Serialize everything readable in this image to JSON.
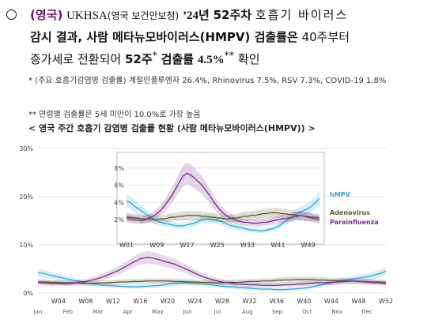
{
  "headline": {
    "tag": "(영국)",
    "source": "UKHSA",
    "source_paren": "(영국 보건안보청)",
    "week_label": "’24년",
    "week_num": "52주차",
    "rest1": "호흡기 바이러스",
    "line2_a": "감시 결과, 사람 메타뉴모바이러스(HMPV) 검출률은",
    "line2_b": "40주부터",
    "line3_a": "증가세로 전환되어",
    "line3_b": "52주",
    "line3_b_sup": "*",
    "line3_c": "검출률",
    "line3_d": "4.5%",
    "line3_d_sup": "**",
    "line3_e": "확인"
  },
  "notes": {
    "note1": "* (주요 호흡기감염병 검출률) 계절인플루엔자 26.4%, Rhinovirus 7.5%, RSV 7.3%, COVID-19 1.8%",
    "note2": "** 연령별 검출률은 5세 미만이 10.0%로 가장 높음"
  },
  "caption": "< 영국 주간 호흡기 감염병 검출률 현황 (사람 메타뉴모바이러스(HMPV)) >",
  "colors": {
    "hmpv": "#29a8e0",
    "adenovirus": "#5a5a2a",
    "parainfluenza": "#7a2a8a",
    "grid": "#dddddd"
  },
  "chart_data": [
    {
      "type": "line",
      "ylim": [
        0,
        30
      ],
      "y_ticks": [
        "0%",
        "10%",
        "20%",
        "30%"
      ],
      "x_week_ticks": [
        "W04",
        "W08",
        "W12",
        "W16",
        "W20",
        "W24",
        "W28",
        "W32",
        "W36",
        "W40",
        "W44",
        "W48",
        "W52"
      ],
      "x_month_ticks": [
        "Jan",
        "Feb",
        "Mar",
        "Apr",
        "May",
        "Jun",
        "Jul",
        "Aug",
        "Sep",
        "Oct",
        "Nov",
        "Dec"
      ],
      "series": [
        {
          "color": "hmpv",
          "values": [
            4.2,
            4.0,
            3.6,
            3.3,
            3.0,
            2.7,
            2.4,
            2.1,
            1.9,
            1.7,
            1.6,
            1.5,
            1.4,
            1.3,
            1.3,
            1.3,
            1.4,
            1.5,
            1.6,
            1.8,
            2.0,
            2.1,
            2.1,
            2.0,
            1.9,
            1.8,
            1.6,
            1.4,
            1.3,
            1.2,
            1.1,
            1.0,
            0.9,
            0.8,
            0.8,
            0.7,
            0.7,
            0.8,
            0.9,
            1.0,
            1.2,
            1.5,
            1.8,
            2.1,
            2.4,
            2.7,
            2.9,
            3.1,
            3.3,
            3.6,
            4.0,
            4.5
          ]
        },
        {
          "color": "adenovirus",
          "values": [
            2.3,
            2.3,
            2.2,
            2.2,
            2.1,
            2.1,
            2.1,
            2.0,
            2.0,
            2.1,
            2.1,
            2.2,
            2.3,
            2.3,
            2.4,
            2.4,
            2.5,
            2.5,
            2.5,
            2.5,
            2.4,
            2.4,
            2.3,
            2.3,
            2.2,
            2.2,
            2.1,
            2.1,
            2.2,
            2.2,
            2.3,
            2.4,
            2.4,
            2.5,
            2.5,
            2.6,
            2.7,
            2.7,
            2.8,
            2.8,
            2.8,
            2.7,
            2.7,
            2.6,
            2.6,
            2.5,
            2.5,
            2.4,
            2.4,
            2.3,
            2.3,
            2.2
          ]
        },
        {
          "color": "parainfluenza",
          "values": [
            2.2,
            2.1,
            2.0,
            2.0,
            1.9,
            2.0,
            2.2,
            2.4,
            2.7,
            3.1,
            3.6,
            4.2,
            4.8,
            5.6,
            6.4,
            7.1,
            7.4,
            7.2,
            6.8,
            6.4,
            6.0,
            5.4,
            4.8,
            4.1,
            3.5,
            3.0,
            2.6,
            2.3,
            2.1,
            1.9,
            1.8,
            1.7,
            1.7,
            1.6,
            1.6,
            1.6,
            1.7,
            1.7,
            1.8,
            1.9,
            2.0,
            2.1,
            2.1,
            2.2,
            2.3,
            2.4,
            2.5,
            2.4,
            2.3,
            2.2,
            2.1,
            2.0
          ]
        }
      ]
    },
    {
      "type": "line",
      "ylim": [
        0,
        9
      ],
      "y_ticks": [
        "2%",
        "4%",
        "6%",
        "8%"
      ],
      "x_week_ticks": [
        "W01",
        "W09",
        "W17",
        "W25",
        "W33",
        "W41",
        "W49"
      ],
      "legend": [
        "hMPV",
        "Adenovirus",
        "Parainfluenza"
      ],
      "series": [
        {
          "name": "hMPV",
          "color": "hmpv",
          "values": [
            4.2,
            4.0,
            3.6,
            3.3,
            3.0,
            2.7,
            2.4,
            2.1,
            1.9,
            1.7,
            1.6,
            1.5,
            1.4,
            1.3,
            1.3,
            1.3,
            1.4,
            1.5,
            1.6,
            1.8,
            2.0,
            2.1,
            2.1,
            2.0,
            1.9,
            1.8,
            1.6,
            1.4,
            1.3,
            1.2,
            1.1,
            1.0,
            0.9,
            0.8,
            0.8,
            0.7,
            0.7,
            0.8,
            0.9,
            1.0,
            1.2,
            1.5,
            1.8,
            2.1,
            2.4,
            2.7,
            2.9,
            3.1,
            3.3,
            3.6,
            4.0,
            4.5
          ]
        },
        {
          "name": "Adenovirus",
          "color": "adenovirus",
          "values": [
            2.3,
            2.3,
            2.2,
            2.2,
            2.1,
            2.1,
            2.1,
            2.0,
            2.0,
            2.1,
            2.1,
            2.2,
            2.3,
            2.3,
            2.4,
            2.4,
            2.5,
            2.5,
            2.5,
            2.5,
            2.4,
            2.4,
            2.3,
            2.3,
            2.2,
            2.2,
            2.1,
            2.1,
            2.2,
            2.2,
            2.3,
            2.4,
            2.4,
            2.5,
            2.5,
            2.6,
            2.7,
            2.7,
            2.8,
            2.8,
            2.8,
            2.7,
            2.7,
            2.6,
            2.6,
            2.5,
            2.5,
            2.4,
            2.4,
            2.3,
            2.3,
            2.2
          ]
        },
        {
          "name": "Parainfluenza",
          "color": "parainfluenza",
          "values": [
            2.2,
            2.1,
            2.0,
            2.0,
            1.9,
            2.0,
            2.2,
            2.4,
            2.7,
            3.1,
            3.6,
            4.2,
            4.8,
            5.6,
            6.4,
            7.1,
            7.4,
            7.2,
            6.8,
            6.4,
            6.0,
            5.4,
            4.8,
            4.1,
            3.5,
            3.0,
            2.6,
            2.3,
            2.1,
            1.9,
            1.8,
            1.7,
            1.7,
            1.6,
            1.6,
            1.6,
            1.7,
            1.7,
            1.8,
            1.9,
            2.0,
            2.1,
            2.1,
            2.2,
            2.3,
            2.4,
            2.5,
            2.4,
            2.3,
            2.2,
            2.1,
            2.0
          ]
        }
      ]
    }
  ]
}
